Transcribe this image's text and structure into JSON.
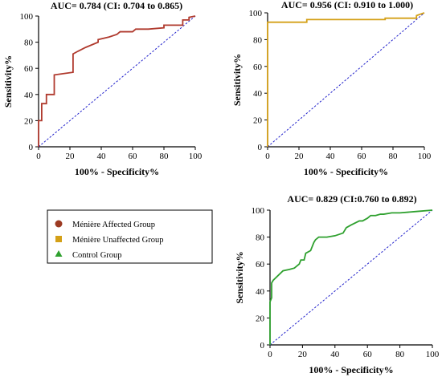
{
  "chart_data": [
    {
      "type": "line",
      "title": "AUC= 0.784 (CI: 0.704 to 0.865)",
      "xlabel": "100% - Specificity%",
      "ylabel": "Sensitivity%",
      "xlim": [
        0,
        100
      ],
      "ylim": [
        0,
        100
      ],
      "xticks": [
        0,
        20,
        40,
        60,
        80,
        100
      ],
      "yticks": [
        0,
        20,
        40,
        60,
        80,
        100
      ],
      "grid": false,
      "reference_line": true,
      "color": "#b03a2e",
      "series": [
        {
          "x": [
            0,
            0,
            2,
            2,
            5,
            5,
            10,
            10,
            22,
            22,
            25,
            30,
            38,
            38,
            45,
            50,
            52,
            60,
            62,
            70,
            80,
            80,
            92,
            92,
            96,
            96,
            100
          ],
          "y": [
            0,
            20,
            20,
            33,
            33,
            40,
            40,
            55,
            57,
            71,
            73,
            76,
            80,
            82,
            84,
            86,
            88,
            88,
            90,
            90,
            91,
            93,
            93,
            97,
            97,
            99,
            100
          ]
        }
      ]
    },
    {
      "type": "line",
      "title": "AUC= 0.956 (CI: 0.910 to 1.000)",
      "xlabel": "100% - Specificity%",
      "ylabel": "Sensitivity%",
      "xlim": [
        0,
        100
      ],
      "ylim": [
        0,
        100
      ],
      "xticks": [
        0,
        20,
        40,
        60,
        80,
        100
      ],
      "yticks": [
        0,
        20,
        40,
        60,
        80,
        100
      ],
      "grid": false,
      "reference_line": true,
      "color": "#d4a017",
      "series": [
        {
          "x": [
            0,
            0,
            25,
            25,
            75,
            75,
            95,
            95,
            100
          ],
          "y": [
            0,
            93,
            93,
            95,
            95,
            96,
            96,
            98,
            100
          ]
        }
      ]
    },
    {
      "type": "line",
      "title": "AUC= 0.829 (CI:0.760 to 0.892)",
      "xlabel": "100% - Specificity%",
      "ylabel": "Sensitivity%",
      "xlim": [
        0,
        100
      ],
      "ylim": [
        0,
        100
      ],
      "xticks": [
        0,
        20,
        40,
        60,
        80,
        100
      ],
      "yticks": [
        0,
        20,
        40,
        60,
        80,
        100
      ],
      "grid": false,
      "reference_line": true,
      "color": "#2ea02e",
      "series": [
        {
          "x": [
            0,
            0,
            1,
            1,
            2,
            8,
            12,
            15,
            18,
            19,
            21,
            22,
            25,
            27,
            28,
            30,
            35,
            40,
            45,
            47,
            50,
            55,
            57,
            60,
            62,
            65,
            68,
            70,
            75,
            80,
            90,
            100
          ],
          "y": [
            0,
            32,
            35,
            46,
            48,
            55,
            56,
            57,
            60,
            63,
            63,
            68,
            70,
            76,
            78,
            80,
            80,
            81,
            83,
            87,
            89,
            92,
            92,
            94,
            96,
            96,
            97,
            97,
            98,
            98,
            99,
            100
          ]
        }
      ]
    }
  ],
  "legend": {
    "items": [
      {
        "label": "Ménière Affected Group",
        "marker": "circle",
        "color": "#9c3a22"
      },
      {
        "label": "Ménière Unaffected Group",
        "marker": "square",
        "color": "#d4a017"
      },
      {
        "label": "Control Group",
        "marker": "triangle",
        "color": "#2ea02e"
      }
    ]
  }
}
